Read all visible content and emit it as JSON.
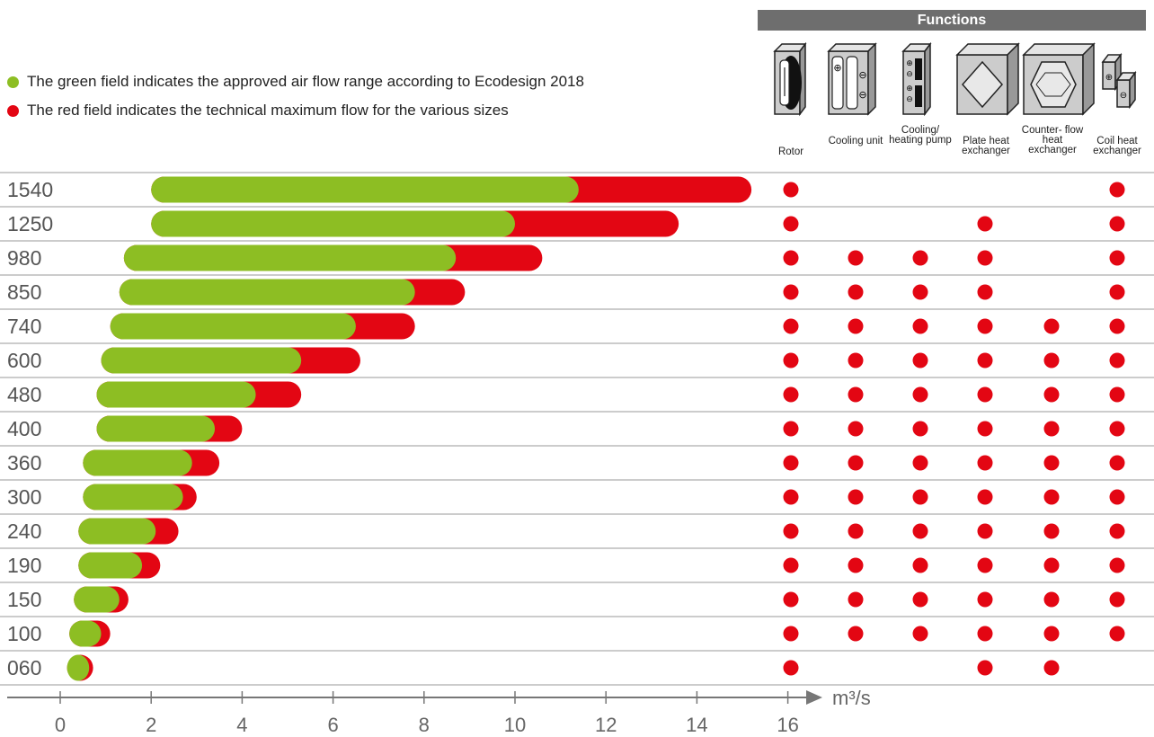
{
  "legend": {
    "green_text": "The green field indicates the approved air flow range according to Ecodesign 2018",
    "red_text": "The red field indicates the technical maximum flow for the various sizes"
  },
  "functions": {
    "header": "Functions",
    "columns": [
      {
        "label": "Rotor",
        "icon": "rotor-icon"
      },
      {
        "label": "Cooling unit",
        "icon": "cooling-unit-icon"
      },
      {
        "label": "Cooling/ heating pump",
        "icon": "cooling-heating-pump-icon"
      },
      {
        "label": "Plate heat exchanger",
        "icon": "plate-heat-exchanger-icon"
      },
      {
        "label": "Counter- flow heat exchanger",
        "icon": "counterflow-heat-exchanger-icon"
      },
      {
        "label": "Coil heat exchanger",
        "icon": "coil-heat-exchanger-icon"
      }
    ]
  },
  "colors": {
    "green": "#8dbe23",
    "red": "#e30613",
    "axis": "#777777",
    "grid": "#999999",
    "header": "#6e6e6e"
  },
  "chart_data": {
    "type": "bar",
    "orientation": "horizontal-range",
    "xlabel": "m³/s",
    "xlim": [
      0,
      16
    ],
    "xticks": [
      0,
      2,
      4,
      6,
      8,
      10,
      12,
      14,
      16
    ],
    "categories": [
      "1540",
      "1250",
      "980",
      "850",
      "740",
      "600",
      "480",
      "400",
      "360",
      "300",
      "240",
      "190",
      "150",
      "100",
      "060"
    ],
    "series": [
      {
        "name": "The green field indicates the approved air flow range according to Ecodesign 2018",
        "color": "#8dbe23",
        "ranges": [
          [
            2.0,
            11.4
          ],
          [
            2.0,
            10.0
          ],
          [
            1.4,
            8.7
          ],
          [
            1.3,
            7.8
          ],
          [
            1.1,
            6.5
          ],
          [
            0.9,
            5.3
          ],
          [
            0.8,
            4.3
          ],
          [
            0.8,
            3.4
          ],
          [
            0.5,
            2.9
          ],
          [
            0.5,
            2.7
          ],
          [
            0.4,
            2.1
          ],
          [
            0.4,
            1.8
          ],
          [
            0.3,
            1.3
          ],
          [
            0.2,
            0.9
          ],
          [
            0.15,
            0.6
          ]
        ]
      },
      {
        "name": "The red field indicates the technical maximum flow for the various sizes",
        "color": "#e30613",
        "max": [
          15.2,
          13.6,
          10.6,
          8.9,
          7.8,
          6.6,
          5.3,
          4.0,
          3.5,
          3.0,
          2.6,
          2.2,
          1.5,
          1.1,
          0.6
        ]
      }
    ],
    "function_availability": [
      [
        1,
        0,
        0,
        0,
        0,
        1
      ],
      [
        1,
        0,
        0,
        1,
        0,
        1
      ],
      [
        1,
        1,
        1,
        1,
        0,
        1
      ],
      [
        1,
        1,
        1,
        1,
        0,
        1
      ],
      [
        1,
        1,
        1,
        1,
        1,
        1
      ],
      [
        1,
        1,
        1,
        1,
        1,
        1
      ],
      [
        1,
        1,
        1,
        1,
        1,
        1
      ],
      [
        1,
        1,
        1,
        1,
        1,
        1
      ],
      [
        1,
        1,
        1,
        1,
        1,
        1
      ],
      [
        1,
        1,
        1,
        1,
        1,
        1
      ],
      [
        1,
        1,
        1,
        1,
        1,
        1
      ],
      [
        1,
        1,
        1,
        1,
        1,
        1
      ],
      [
        1,
        1,
        1,
        1,
        1,
        1
      ],
      [
        1,
        1,
        1,
        1,
        1,
        1
      ],
      [
        1,
        0,
        0,
        1,
        1,
        0
      ]
    ]
  }
}
